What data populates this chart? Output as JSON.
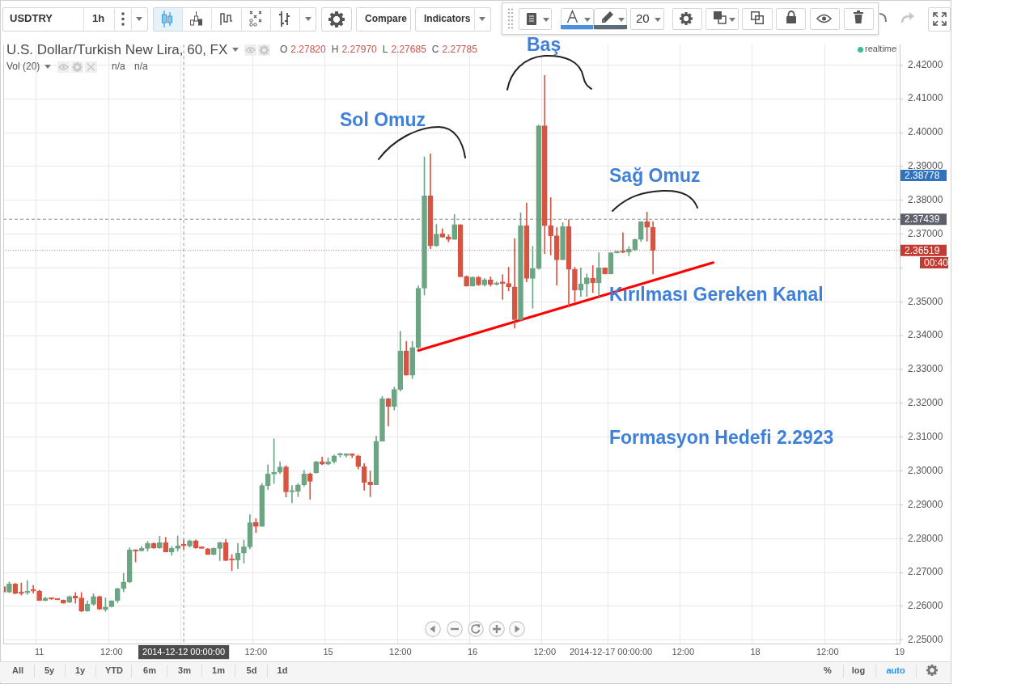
{
  "chart_data": {
    "type": "candlestick",
    "title": "U.S. Dollar/Turkish New Lira, 60, FX",
    "categories": [
      null,
      null,
      null,
      null,
      null,
      null,
      "11",
      null,
      null,
      null,
      null,
      null,
      null,
      null,
      null,
      null,
      null,
      null,
      "12:00",
      null,
      null,
      null,
      null,
      null,
      null,
      null,
      null,
      null,
      null,
      null,
      "2014-12-12 00:00:00",
      null,
      null,
      null,
      null,
      null,
      null,
      null,
      null,
      null,
      null,
      null,
      "12:00",
      null,
      null,
      null,
      null,
      null,
      null,
      null,
      null,
      null,
      null,
      null,
      "15",
      null,
      null,
      null,
      null,
      null,
      null,
      null,
      null,
      null,
      null,
      null,
      "12:00",
      null,
      null,
      null,
      null,
      null,
      null,
      null,
      null,
      null,
      null,
      null,
      "16",
      null,
      null,
      null,
      null,
      null,
      null,
      null,
      null,
      null,
      null,
      null,
      "12:00",
      null,
      null,
      null,
      null,
      null,
      null,
      null,
      null,
      null,
      null,
      "2014-12-17 00:00:00",
      null,
      null,
      null,
      null,
      null,
      null,
      null,
      null,
      null,
      null,
      null,
      "12:00",
      null,
      null,
      null,
      null,
      null,
      null,
      null,
      null,
      null,
      null,
      null,
      "18",
      null,
      null,
      null,
      null,
      null,
      null,
      null,
      null,
      null,
      null,
      null,
      "12:00",
      null,
      null,
      null,
      null,
      null,
      null,
      null,
      null,
      null,
      null,
      null,
      "19"
    ],
    "series": [
      {
        "ohlc": [
          [
            2.2658,
            2.2661,
            2.2638,
            2.2642
          ],
          [
            2.2642,
            2.2672,
            2.264,
            2.2666
          ],
          [
            2.2666,
            2.2668,
            2.2637,
            2.2638
          ],
          [
            2.264,
            2.2669,
            2.2633,
            2.2638
          ],
          [
            2.264,
            2.2676,
            2.2635,
            2.2645
          ],
          [
            2.2646,
            2.2662,
            2.2639,
            2.2645
          ],
          [
            2.2645,
            2.2648,
            2.2617,
            2.2617
          ],
          [
            2.2617,
            2.2627,
            2.2616,
            2.2624
          ],
          [
            2.2624,
            2.2625,
            2.262,
            2.2621
          ],
          [
            2.2622,
            2.2622,
            2.2619,
            2.2619
          ],
          [
            2.2618,
            2.2619,
            2.2609,
            2.2609
          ],
          [
            2.2612,
            2.2631,
            2.261,
            2.2629
          ],
          [
            2.263,
            2.2641,
            2.2609,
            2.2624
          ],
          [
            2.2625,
            2.2641,
            2.2584,
            2.2586
          ],
          [
            2.2586,
            2.2616,
            2.2585,
            2.2606
          ],
          [
            2.2606,
            2.2637,
            2.2603,
            2.2629
          ],
          [
            2.2629,
            2.2631,
            2.259,
            2.2592
          ],
          [
            2.259,
            2.2625,
            2.2585,
            2.2598
          ],
          [
            2.2599,
            2.2617,
            2.2598,
            2.2616
          ],
          [
            2.2617,
            2.2654,
            2.2611,
            2.2652
          ],
          [
            2.2652,
            2.2697,
            2.2643,
            2.2672
          ],
          [
            2.2672,
            2.2773,
            2.267,
            2.2767
          ],
          [
            2.2767,
            2.2767,
            2.2731,
            2.2763
          ],
          [
            2.2764,
            2.2777,
            2.2763,
            2.2771
          ],
          [
            2.2771,
            2.2792,
            2.2763,
            2.2786
          ],
          [
            2.2786,
            2.2788,
            2.2771,
            2.2773
          ],
          [
            2.2773,
            2.2807,
            2.2771,
            2.2788
          ],
          [
            2.2788,
            2.2804,
            2.2761,
            2.2761
          ],
          [
            2.2761,
            2.2777,
            2.2751,
            2.2771
          ],
          [
            2.2771,
            2.2808,
            2.2763,
            2.2779
          ],
          [
            2.2782,
            2.2797,
            2.27685,
            2.27785
          ],
          [
            2.2778,
            2.2796,
            2.2775,
            2.2794
          ],
          [
            2.2794,
            2.2796,
            2.2771,
            2.2773
          ],
          [
            2.2774,
            2.2775,
            2.2771,
            2.2771
          ],
          [
            2.277,
            2.2771,
            2.2753,
            2.2753
          ],
          [
            2.2753,
            2.2773,
            2.2752,
            2.2771
          ],
          [
            2.2771,
            2.279,
            2.2735,
            2.2788
          ],
          [
            2.2788,
            2.2798,
            2.2735,
            2.2735
          ],
          [
            2.2737,
            2.2753,
            2.2705,
            2.2736
          ],
          [
            2.2737,
            2.2786,
            2.2711,
            2.2757
          ],
          [
            2.2757,
            2.2796,
            2.2728,
            2.2776
          ],
          [
            2.2776,
            2.2871,
            2.277,
            2.2847
          ],
          [
            2.2848,
            2.2859,
            2.2818,
            2.2836
          ],
          [
            2.2836,
            2.2963,
            2.2836,
            2.2957
          ],
          [
            2.2957,
            2.3018,
            2.2945,
            2.2991
          ],
          [
            2.2991,
            2.3095,
            2.2963,
            2.2996
          ],
          [
            2.2996,
            2.3027,
            2.2992,
            2.3012
          ],
          [
            2.3012,
            2.3016,
            2.2923,
            2.2938
          ],
          [
            2.2938,
            2.2957,
            2.2906,
            2.294
          ],
          [
            2.294,
            2.2963,
            2.2924,
            2.2959
          ],
          [
            2.2959,
            2.3002,
            2.2955,
            2.2991
          ],
          [
            2.2991,
            2.2994,
            2.2916,
            2.2969
          ],
          [
            2.2995,
            2.3029,
            2.2993,
            2.3027
          ],
          [
            2.3027,
            2.3041,
            2.3018,
            2.302
          ],
          [
            2.302,
            2.3039,
            2.3018,
            2.3027
          ],
          [
            2.3027,
            2.3047,
            2.3023,
            2.3045
          ],
          [
            2.3047,
            2.3053,
            2.3041,
            2.3048
          ],
          [
            2.3046,
            2.305,
            2.3041,
            2.305
          ],
          [
            2.305,
            2.305,
            2.3039,
            2.3046
          ],
          [
            2.3045,
            2.3047,
            2.3006,
            2.3013
          ],
          [
            2.3013,
            2.3022,
            2.2943,
            2.2966
          ],
          [
            2.2967,
            2.3,
            2.2924,
            2.2959
          ],
          [
            2.2959,
            2.3103,
            2.2959,
            2.3088
          ],
          [
            2.3088,
            2.322,
            2.3088,
            2.3213
          ],
          [
            2.3213,
            2.3215,
            2.3133,
            2.3191
          ],
          [
            2.3191,
            2.3248,
            2.318,
            2.3241
          ],
          [
            2.3241,
            2.3413,
            2.3236,
            2.3355
          ],
          [
            2.3355,
            2.3383,
            2.3283,
            2.3283
          ],
          [
            2.3283,
            2.3383,
            2.3273,
            2.3365
          ],
          [
            2.3365,
            2.3547,
            2.3359,
            2.354
          ],
          [
            2.354,
            2.3928,
            2.352,
            2.3813
          ],
          [
            2.3813,
            2.3937,
            2.3657,
            2.3665
          ],
          [
            2.3665,
            2.3729,
            2.3664,
            2.37
          ],
          [
            2.3702,
            2.3716,
            2.3691,
            2.3691
          ],
          [
            2.3692,
            2.3698,
            2.3677,
            2.3684
          ],
          [
            2.3684,
            2.3758,
            2.3684,
            2.3728
          ],
          [
            2.3728,
            2.3728,
            2.3574,
            2.3574
          ],
          [
            2.3575,
            2.3577,
            2.3546,
            2.3546
          ],
          [
            2.3546,
            2.3574,
            2.3546,
            2.3573
          ],
          [
            2.3573,
            2.3575,
            2.3548,
            2.355
          ],
          [
            2.355,
            2.3569,
            2.3546,
            2.3565
          ],
          [
            2.3565,
            2.3574,
            2.3546,
            2.3551
          ],
          [
            2.3551,
            2.3559,
            2.3549,
            2.3556
          ],
          [
            2.3556,
            2.358,
            2.3507,
            2.3554
          ],
          [
            2.3554,
            2.3602,
            2.3532,
            2.3544
          ],
          [
            2.3544,
            2.3687,
            2.3422,
            2.3447
          ],
          [
            2.3447,
            2.3763,
            2.3445,
            2.3725
          ],
          [
            2.3725,
            2.3792,
            2.3559,
            2.3569
          ],
          [
            2.3569,
            2.3664,
            2.3481,
            2.3598
          ],
          [
            2.3598,
            2.4022,
            2.3596,
            2.402
          ],
          [
            2.402,
            2.4169,
            2.3642,
            2.3725
          ],
          [
            2.3725,
            2.3808,
            2.3638,
            2.3695
          ],
          [
            2.3695,
            2.372,
            2.3549,
            2.3624
          ],
          [
            2.3624,
            2.3734,
            2.3624,
            2.3722
          ],
          [
            2.3722,
            2.3743,
            2.3484,
            2.3596
          ],
          [
            2.3596,
            2.3602,
            2.35,
            2.3535
          ],
          [
            2.3535,
            2.36,
            2.3516,
            2.3553
          ],
          [
            2.3553,
            2.3582,
            2.3516,
            2.3571
          ],
          [
            2.3569,
            2.3607,
            2.3527,
            2.3556
          ],
          [
            2.3556,
            2.3645,
            2.3516,
            2.36
          ],
          [
            2.36,
            2.36,
            2.3582,
            2.3582
          ],
          [
            2.3582,
            2.3645,
            2.3582,
            2.3645
          ],
          [
            2.3645,
            2.3647,
            2.3644,
            2.3647
          ],
          [
            2.3647,
            2.3704,
            2.3645,
            2.3646
          ],
          [
            2.3647,
            2.3663,
            2.3636,
            2.3655
          ],
          [
            2.3653,
            2.3686,
            2.3651,
            2.3684
          ],
          [
            2.3684,
            2.3737,
            2.3678,
            2.3737
          ],
          [
            2.3737,
            2.3765,
            2.3679,
            2.372
          ],
          [
            2.372,
            2.3737,
            2.3582,
            2.36519
          ],
          null,
          null,
          null,
          null,
          null,
          null,
          null,
          null,
          null,
          null,
          null,
          null,
          null,
          null,
          null,
          null,
          null,
          null,
          null,
          null,
          null,
          null,
          null,
          null,
          null,
          null,
          null,
          null,
          null,
          null,
          null,
          null,
          null,
          null,
          null,
          null,
          null,
          null,
          null,
          null,
          null
        ],
        "colors": [
          "#d75442",
          "#6ba583",
          "#d75442",
          "#d75442",
          "#6ba583",
          "#d75442",
          "#d75442",
          "#6ba583",
          "#d75442",
          "#d75442",
          "#d75442",
          "#6ba583",
          "#d75442",
          "#d75442",
          "#6ba583",
          "#6ba583",
          "#d75442",
          "#6ba583",
          "#6ba583",
          "#6ba583",
          "#6ba583",
          "#6ba583",
          "#d75442",
          "#6ba583",
          "#6ba583",
          "#d75442",
          "#6ba583",
          "#d75442",
          "#6ba583",
          "#6ba583",
          "#d75442",
          "#6ba583",
          "#d75442",
          "#d75442",
          "#d75442",
          "#6ba583",
          "#6ba583",
          "#d75442",
          "#d75442",
          "#6ba583",
          "#6ba583",
          "#6ba583",
          "#d75442",
          "#6ba583",
          "#6ba583",
          "#6ba583",
          "#6ba583",
          "#d75442",
          "#6ba583",
          "#6ba583",
          "#6ba583",
          "#d75442",
          "#6ba583",
          "#d75442",
          "#6ba583",
          "#6ba583",
          "#6ba583",
          "#6ba583",
          "#d75442",
          "#d75442",
          "#d75442",
          "#d75442",
          "#6ba583",
          "#6ba583",
          "#d75442",
          "#6ba583",
          "#6ba583",
          "#d75442",
          "#6ba583",
          "#6ba583",
          "#6ba583",
          "#d75442",
          "#6ba583",
          "#d75442",
          "#d75442",
          "#6ba583",
          "#d75442",
          "#d75442",
          "#6ba583",
          "#d75442",
          "#6ba583",
          "#d75442",
          "#6ba583",
          "#d75442",
          "#d75442",
          "#d75442",
          "#6ba583",
          "#d75442",
          "#6ba583",
          "#6ba583",
          "#d75442",
          "#d75442",
          "#d75442",
          "#6ba583",
          "#d75442",
          "#d75442",
          "#6ba583",
          "#6ba583",
          "#d75442",
          "#6ba583",
          "#d75442",
          "#6ba583",
          "#6ba583",
          "#d75442",
          "#6ba583",
          "#6ba583",
          "#6ba583",
          "#d75442",
          "#d75442",
          null,
          null,
          null,
          null,
          null,
          null,
          null,
          null,
          null,
          null,
          null,
          null,
          null,
          null,
          null,
          null,
          null,
          null,
          null,
          null,
          null,
          null,
          null,
          null,
          null,
          null,
          null,
          null,
          null,
          null,
          null,
          null,
          null,
          null,
          null,
          null,
          null,
          null,
          null,
          null,
          null
        ]
      },
      {
        "type": "line",
        "color": "#ff0000",
        "values": [
          null,
          null,
          null,
          null,
          null,
          null,
          null,
          null,
          null,
          null,
          null,
          null,
          null,
          null,
          null,
          null,
          null,
          null,
          null,
          null,
          null,
          null,
          null,
          null,
          null,
          null,
          null,
          null,
          null,
          null,
          null,
          null,
          null,
          null,
          null,
          null,
          null,
          null,
          null,
          null,
          null,
          null,
          null,
          null,
          null,
          null,
          null,
          null,
          null,
          null,
          null,
          null,
          null,
          null,
          null,
          null,
          null,
          null,
          null,
          null,
          null,
          null,
          null,
          null,
          null,
          null,
          null,
          null,
          null,
          2.3356,
          null,
          null,
          null,
          null,
          null,
          null,
          null,
          null,
          null,
          null,
          null,
          null,
          null,
          null,
          null,
          null,
          null,
          null,
          null,
          null,
          null,
          null,
          null,
          null,
          null,
          null,
          null,
          null,
          null,
          null,
          null,
          null,
          null,
          null,
          null,
          null,
          null,
          null,
          null,
          null,
          null,
          null,
          null,
          null,
          null,
          null,
          null,
          null,
          2.3616,
          null,
          null,
          null,
          null,
          null,
          null,
          null,
          null,
          null,
          null,
          null,
          null,
          null,
          null,
          null,
          null,
          null,
          null,
          null,
          null,
          null,
          null,
          null,
          null,
          null,
          null,
          null,
          null,
          null,
          null,
          null
        ]
      }
    ],
    "ylim": [
      2.249,
      2.426
    ],
    "yticks": [
      {
        "value": 2.25,
        "label": "2.25000"
      },
      {
        "value": 2.26,
        "label": "2.26000"
      },
      {
        "value": 2.27,
        "label": "2.27000"
      },
      {
        "value": 2.28,
        "label": "2.28000"
      },
      {
        "value": 2.29,
        "label": "2.29000"
      },
      {
        "value": 2.3,
        "label": "2.30000"
      },
      {
        "value": 2.31,
        "label": "2.31000"
      },
      {
        "value": 2.32,
        "label": "2.32000"
      },
      {
        "value": 2.33,
        "label": "2.33000"
      },
      {
        "value": 2.34,
        "label": "2.34000"
      },
      {
        "value": 2.35,
        "label": "2.35000"
      },
      {
        "value": 2.36,
        "label": null
      },
      {
        "value": 2.37,
        "label": "2.37000"
      },
      {
        "value": 2.38,
        "label": "2.38000"
      },
      {
        "value": 2.39,
        "label": "2.39000"
      },
      {
        "value": 2.4,
        "label": "2.40000"
      },
      {
        "value": 2.41,
        "label": "2.41000"
      },
      {
        "value": 2.42,
        "label": "2.42000"
      }
    ],
    "grid": true,
    "ref_lines": [
      {
        "axis": "x",
        "value": "2014-12-12 00:00:00",
        "color": "#4d4d4d",
        "line_style": "dashed"
      },
      {
        "axis": "y",
        "value": 2.37439,
        "label": "2.37439",
        "color": "#5d606b",
        "line_style": "dashed"
      },
      {
        "axis": "y",
        "value": 2.36519,
        "label": "2.36519",
        "color": "#c43c31",
        "line_style": "dotted"
      }
    ],
    "annotations": [
      "USDTRY",
      "1h",
      "Compare",
      "Indicators",
      "20",
      "O 2.27820 H 2.27970 L 2.27685 C 2.27785",
      "Vol (20)",
      "n/a",
      "n/a",
      "realtime",
      "Sol Omuz",
      "Baş",
      "Sağ Omuz",
      "Kırılması Gereken Kanal",
      "Formasyon Hedefi 2.2923",
      "2.38778",
      "00:40",
      "All",
      "5y",
      "1y",
      "YTD",
      "6m",
      "3m",
      "1m",
      "5d",
      "1d",
      "%",
      "log",
      "auto"
    ]
  }
}
